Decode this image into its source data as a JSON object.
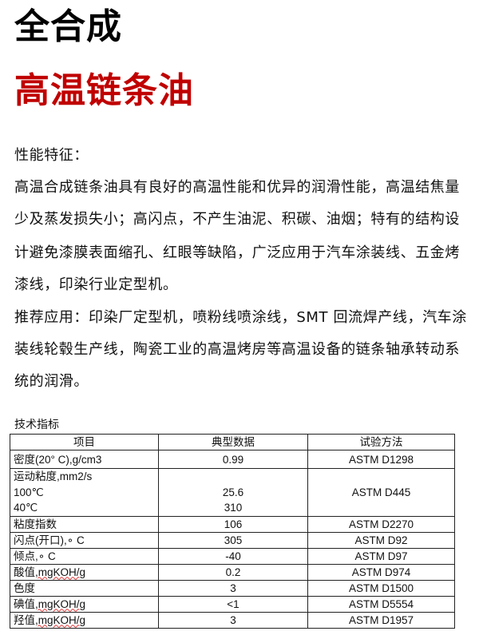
{
  "title_line1": "全合成",
  "title_line2": "高温链条油",
  "title_color": "#c00000",
  "features_heading": "性能特征：",
  "body_lines": [
    "高温合成链条油具有良好的高温性能和优异的润滑性能，高温结焦量",
    "少及蒸发损失小；高闪点，不产生油泥、积碳、油烟；特有的结构设",
    "计避免漆膜表面缩孔、红眼等缺陷，广泛应用于汽车涂装线、五金烤",
    "漆线，印染行业定型机。",
    "推荐应用：印染厂定型机，喷粉线喷涂线，SMT 回流焊产线，汽车涂",
    "装线轮毂生产线，陶瓷工业的高温烤房等高温设备的链条轴承转动系",
    "统的润滑。"
  ],
  "table": {
    "caption": "技术指标",
    "headers": [
      "项目",
      "典型数据",
      "试验方法"
    ],
    "rows": [
      {
        "item": "密度(20° C),g/cm3",
        "value": "0.99",
        "method": "ASTM D1298"
      },
      {
        "item": "运动粘度,mm2/s",
        "sub": [
          {
            "item": "100℃",
            "value": "25.6"
          },
          {
            "item": "40℃",
            "value": "310"
          }
        ],
        "method": "ASTM D445"
      },
      {
        "item": "粘度指数",
        "value": "106",
        "method": "ASTM D2270"
      },
      {
        "item": "闪点(开口),∘ C",
        "value": "305",
        "method": "ASTM D92"
      },
      {
        "item": "倾点,∘ C",
        "value": "-40",
        "method": "ASTM D97"
      },
      {
        "item": "酸值",
        "unit": ",mgKOH/g",
        "value": "0.2",
        "method": "ASTM D974"
      },
      {
        "item": "色度",
        "value": "3",
        "method": "ASTM D1500"
      },
      {
        "item": "碘值",
        "unit": ",mgKOH/g",
        "value": "<1",
        "method": "ASTM D5554"
      },
      {
        "item": "羟值",
        "unit": ",mgKOH/g",
        "value": "3",
        "method": "ASTM D1957"
      }
    ]
  }
}
